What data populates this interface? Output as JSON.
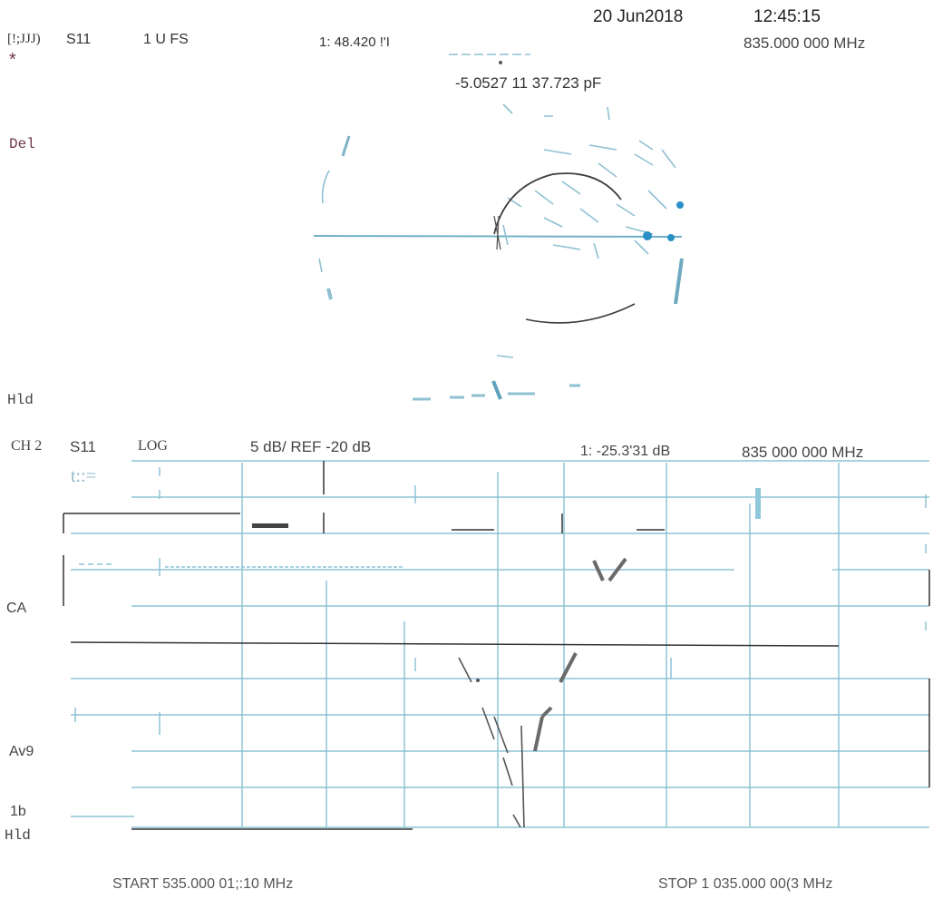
{
  "header": {
    "date": "20 Jun2018",
    "time": "12:45:15",
    "ch1_label": "[!;JJJ)",
    "ch1_param": "S11",
    "ch1_format": "1 U FS",
    "ch1_marker": "1: 48.420 !'I",
    "ch1_freq": "835.000 000 MHz",
    "ch1_marker2": "-5.0527 11 37.723 pF"
  },
  "left_labels": {
    "star": "*",
    "del": "Del",
    "hld1": "Hld",
    "ca": "CA",
    "avg": "Av9",
    "avg_count": "1b",
    "hld2": "Hld"
  },
  "ch2": {
    "label": "CH 2",
    "param": "S11",
    "format": "LOG",
    "scale": "5 dB/ REF -20 dB",
    "marker": "1: -25.3'31 dB",
    "marker_freq": "835 000 000 MHz",
    "ref_symbol": "t::=",
    "start": "START 535.000 01;:10 MHz",
    "stop": "STOP 1 035.000 00(3 MHz"
  },
  "colors": {
    "grid": "#7fb6c9",
    "trace": "#333333",
    "marker_blue": "#2a8fc4"
  }
}
